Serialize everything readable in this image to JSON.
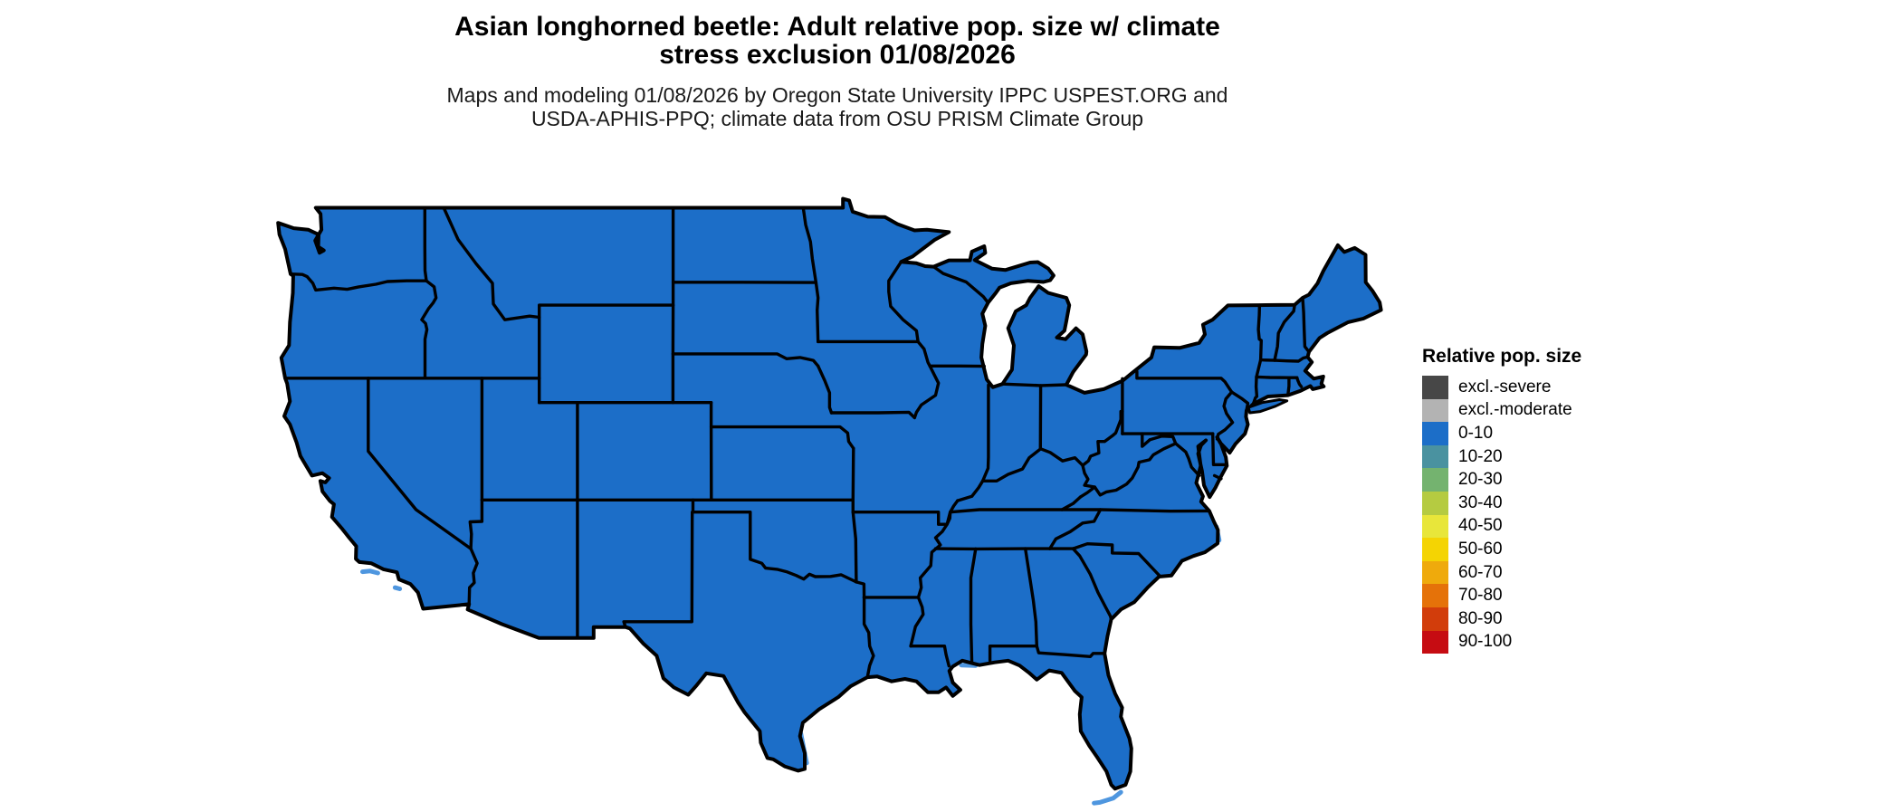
{
  "header": {
    "title_line1": "Asian longhorned beetle: Adult relative pop. size w/ climate",
    "title_line2": "stress exclusion 01/08/2026",
    "subtitle_line1": "Maps and modeling 01/08/2026 by Oregon State University IPPC USPEST.ORG and",
    "subtitle_line2": "USDA-APHIS-PPQ; climate data from OSU PRISM Climate Group"
  },
  "legend": {
    "title": "Relative pop. size",
    "items": [
      {
        "label": "excl.-severe",
        "color": "#474747"
      },
      {
        "label": "excl.-moderate",
        "color": "#B3B3B3"
      },
      {
        "label": "0-10",
        "color": "#1C6EC8"
      },
      {
        "label": "10-20",
        "color": "#4A92A0"
      },
      {
        "label": "20-30",
        "color": "#74B36F"
      },
      {
        "label": "30-40",
        "color": "#B5CB41"
      },
      {
        "label": "40-50",
        "color": "#E8E63A"
      },
      {
        "label": "50-60",
        "color": "#F4D403"
      },
      {
        "label": "60-70",
        "color": "#EFAA0C"
      },
      {
        "label": "70-80",
        "color": "#E57209"
      },
      {
        "label": "80-90",
        "color": "#D23D0B"
      },
      {
        "label": "90-100",
        "color": "#C60C12"
      }
    ]
  },
  "map": {
    "region": "Contiguous United States",
    "fill_category": "0-10",
    "fill_color": "#1C6EC8",
    "border_color": "#000000",
    "water_detail_color": "#4E96DF",
    "background_color": "#FFFFFF"
  }
}
